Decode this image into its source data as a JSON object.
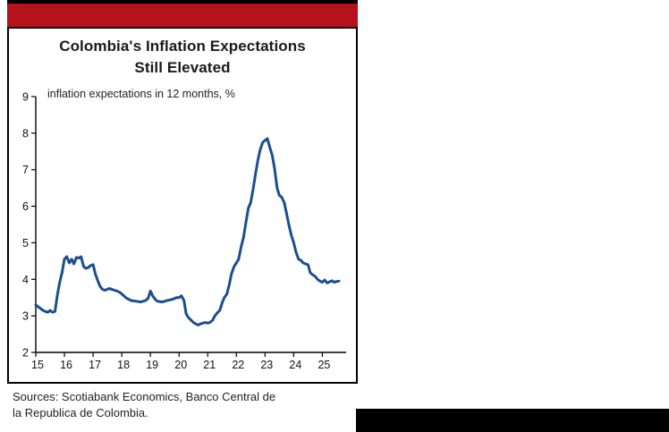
{
  "page": {
    "title_line1": "Colombia's Inflation Expectations",
    "title_line2": "Still Elevated",
    "subtitle": "inflation expectations in 12 months, %",
    "sources_line1": "Sources: Scotiabank Economics, Banco Central de",
    "sources_line2": "la Republica de Colombia.",
    "accent_red": "#b5121b",
    "line_color": "#1d4e8f",
    "axis_color": "#000000"
  },
  "chart_data": {
    "type": "line",
    "title": "Colombia's Inflation Expectations Still Elevated",
    "subtitle": "inflation expectations in 12 months, %",
    "xlabel": "",
    "ylabel": "inflation expectations in 12 months, %",
    "xlim": [
      2015,
      2025.83
    ],
    "ylim": [
      2,
      9
    ],
    "yticks": [
      2,
      3,
      4,
      5,
      6,
      7,
      8,
      9
    ],
    "xticks": [
      2015,
      2016,
      2017,
      2018,
      2019,
      2020,
      2021,
      2022,
      2023,
      2024,
      2025
    ],
    "xtick_labels": [
      "15",
      "16",
      "17",
      "18",
      "19",
      "20",
      "21",
      "22",
      "23",
      "24",
      "25"
    ],
    "grid": false,
    "legend": "none",
    "series": [
      {
        "name": "inflation expectations in 12 months, %",
        "points": [
          [
            2015.0,
            3.3
          ],
          [
            2015.08,
            3.25
          ],
          [
            2015.17,
            3.2
          ],
          [
            2015.25,
            3.15
          ],
          [
            2015.33,
            3.12
          ],
          [
            2015.42,
            3.1
          ],
          [
            2015.5,
            3.15
          ],
          [
            2015.58,
            3.1
          ],
          [
            2015.67,
            3.12
          ],
          [
            2015.75,
            3.55
          ],
          [
            2015.83,
            3.9
          ],
          [
            2015.92,
            4.2
          ],
          [
            2016.0,
            4.55
          ],
          [
            2016.08,
            4.62
          ],
          [
            2016.17,
            4.45
          ],
          [
            2016.25,
            4.55
          ],
          [
            2016.33,
            4.42
          ],
          [
            2016.42,
            4.6
          ],
          [
            2016.5,
            4.58
          ],
          [
            2016.58,
            4.62
          ],
          [
            2016.67,
            4.35
          ],
          [
            2016.75,
            4.3
          ],
          [
            2016.83,
            4.32
          ],
          [
            2016.92,
            4.38
          ],
          [
            2017.0,
            4.4
          ],
          [
            2017.08,
            4.15
          ],
          [
            2017.17,
            3.95
          ],
          [
            2017.25,
            3.8
          ],
          [
            2017.33,
            3.72
          ],
          [
            2017.42,
            3.7
          ],
          [
            2017.5,
            3.73
          ],
          [
            2017.58,
            3.75
          ],
          [
            2017.67,
            3.72
          ],
          [
            2017.75,
            3.7
          ],
          [
            2017.83,
            3.68
          ],
          [
            2017.92,
            3.65
          ],
          [
            2018.0,
            3.6
          ],
          [
            2018.17,
            3.48
          ],
          [
            2018.33,
            3.42
          ],
          [
            2018.5,
            3.4
          ],
          [
            2018.67,
            3.38
          ],
          [
            2018.83,
            3.42
          ],
          [
            2018.92,
            3.48
          ],
          [
            2019.0,
            3.68
          ],
          [
            2019.08,
            3.55
          ],
          [
            2019.17,
            3.45
          ],
          [
            2019.25,
            3.4
          ],
          [
            2019.42,
            3.38
          ],
          [
            2019.58,
            3.42
          ],
          [
            2019.75,
            3.45
          ],
          [
            2019.92,
            3.5
          ],
          [
            2020.0,
            3.5
          ],
          [
            2020.08,
            3.55
          ],
          [
            2020.17,
            3.42
          ],
          [
            2020.25,
            3.05
          ],
          [
            2020.33,
            2.95
          ],
          [
            2020.42,
            2.88
          ],
          [
            2020.5,
            2.82
          ],
          [
            2020.58,
            2.78
          ],
          [
            2020.67,
            2.75
          ],
          [
            2020.75,
            2.78
          ],
          [
            2020.83,
            2.8
          ],
          [
            2020.92,
            2.82
          ],
          [
            2021.0,
            2.8
          ],
          [
            2021.08,
            2.82
          ],
          [
            2021.17,
            2.88
          ],
          [
            2021.25,
            3.0
          ],
          [
            2021.33,
            3.08
          ],
          [
            2021.42,
            3.15
          ],
          [
            2021.5,
            3.35
          ],
          [
            2021.58,
            3.5
          ],
          [
            2021.67,
            3.6
          ],
          [
            2021.75,
            3.85
          ],
          [
            2021.83,
            4.15
          ],
          [
            2021.92,
            4.35
          ],
          [
            2022.0,
            4.45
          ],
          [
            2022.08,
            4.55
          ],
          [
            2022.17,
            4.9
          ],
          [
            2022.25,
            5.15
          ],
          [
            2022.33,
            5.55
          ],
          [
            2022.42,
            5.95
          ],
          [
            2022.5,
            6.1
          ],
          [
            2022.58,
            6.45
          ],
          [
            2022.67,
            6.9
          ],
          [
            2022.75,
            7.25
          ],
          [
            2022.83,
            7.55
          ],
          [
            2022.92,
            7.75
          ],
          [
            2023.0,
            7.8
          ],
          [
            2023.08,
            7.85
          ],
          [
            2023.17,
            7.6
          ],
          [
            2023.25,
            7.4
          ],
          [
            2023.33,
            7.05
          ],
          [
            2023.42,
            6.5
          ],
          [
            2023.5,
            6.3
          ],
          [
            2023.58,
            6.25
          ],
          [
            2023.67,
            6.1
          ],
          [
            2023.75,
            5.8
          ],
          [
            2023.83,
            5.5
          ],
          [
            2023.92,
            5.2
          ],
          [
            2024.0,
            5.0
          ],
          [
            2024.08,
            4.75
          ],
          [
            2024.17,
            4.55
          ],
          [
            2024.25,
            4.52
          ],
          [
            2024.33,
            4.45
          ],
          [
            2024.42,
            4.42
          ],
          [
            2024.5,
            4.4
          ],
          [
            2024.58,
            4.18
          ],
          [
            2024.67,
            4.12
          ],
          [
            2024.75,
            4.08
          ],
          [
            2024.83,
            4.0
          ],
          [
            2024.92,
            3.95
          ],
          [
            2025.0,
            3.92
          ],
          [
            2025.08,
            3.98
          ],
          [
            2025.17,
            3.9
          ],
          [
            2025.25,
            3.93
          ],
          [
            2025.33,
            3.96
          ],
          [
            2025.42,
            3.92
          ],
          [
            2025.5,
            3.94
          ],
          [
            2025.58,
            3.95
          ]
        ]
      }
    ]
  }
}
